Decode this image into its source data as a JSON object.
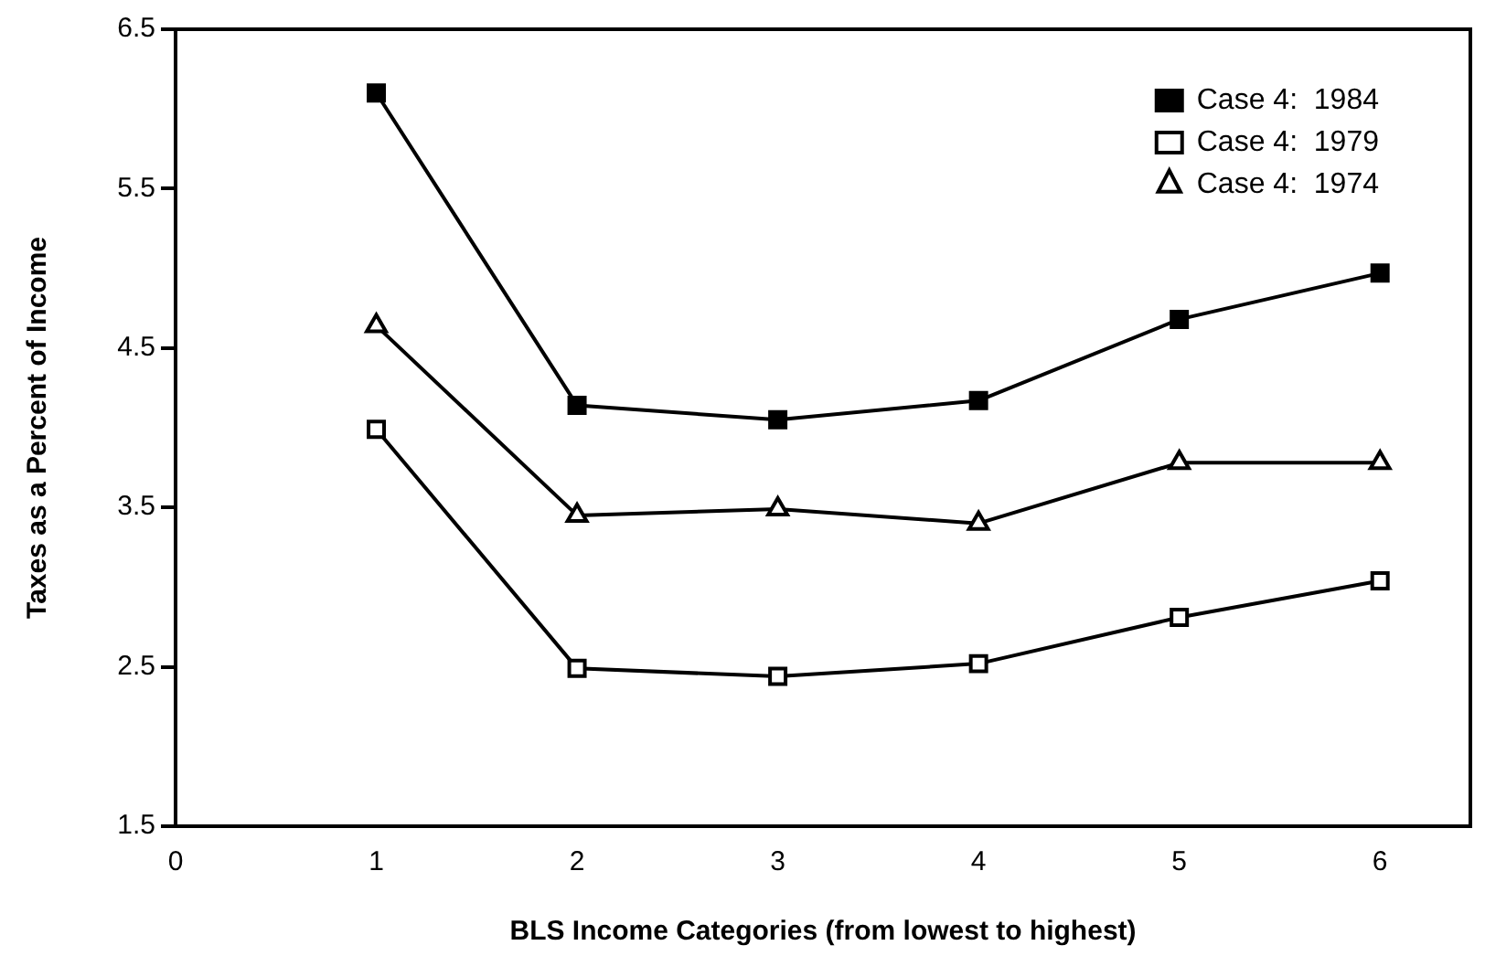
{
  "chart_data": {
    "type": "line",
    "xlabel": "BLS Income Categories (from lowest to highest)",
    "ylabel": "Taxes as a Percent of Income",
    "x": [
      1,
      2,
      3,
      4,
      5,
      6
    ],
    "series": [
      {
        "name": "Case 4:  1984",
        "color": "#000000",
        "marker": "square",
        "values": [
          6.1,
          4.14,
          4.05,
          4.17,
          4.68,
          4.97
        ]
      },
      {
        "name": "Case 4:  1979",
        "color": "#000000",
        "marker": "square",
        "values": [
          3.99,
          2.49,
          2.44,
          2.52,
          2.81,
          3.04
        ]
      },
      {
        "name": "Case 4:  1974",
        "color": "#000000",
        "marker": "triangle",
        "values": [
          4.64,
          3.45,
          3.49,
          3.4,
          3.78,
          3.78
        ]
      }
    ],
    "xlim": [
      0,
      6.45
    ],
    "xticks": [
      0,
      1,
      2,
      3,
      4,
      5,
      6
    ],
    "ylim": [
      1.5,
      6.5
    ],
    "yticks": [
      1.5,
      2.5,
      3.5,
      4.5,
      5.5,
      6.5
    ],
    "grid": false,
    "legend": "top right",
    "line_style": "solid"
  }
}
